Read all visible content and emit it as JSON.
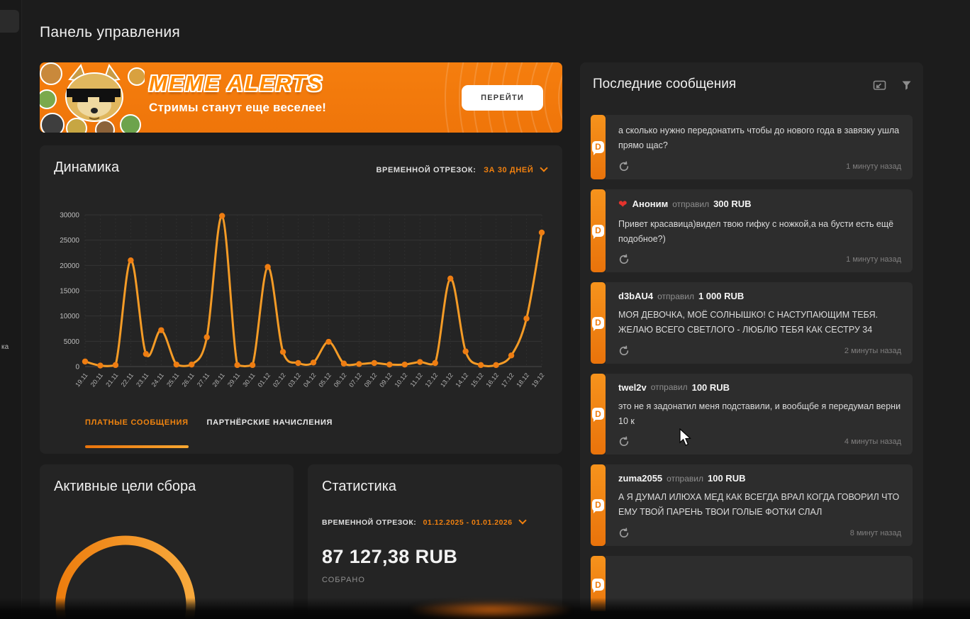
{
  "page": {
    "title": "Панель управления"
  },
  "sidebar": {
    "fragment": "ка"
  },
  "banner": {
    "title": "MEME ALERTS",
    "subtitle": "Стримы станут еще веселее!",
    "button": "ПЕРЕЙТИ",
    "collage_icon": "doge-with-sunglasses-sticker-collage",
    "background_color": "#F0770B"
  },
  "dynamics": {
    "title": "Динамика",
    "period_label": "ВРЕМЕННОЙ ОТРЕЗОК:",
    "period_value": "ЗА 30 ДНЕЙ",
    "tabs": [
      {
        "label": "ПЛАТНЫЕ СООБЩЕНИЯ",
        "active": true
      },
      {
        "label": "ПАРТНЁРСКИЕ НАЧИСЛЕНИЯ",
        "active": false
      }
    ]
  },
  "chart_data": {
    "type": "line",
    "title": "Динамика — платные сообщения за 30 дней (RUB)",
    "categories": [
      "19.11",
      "20.11",
      "21.11",
      "22.11",
      "23.11",
      "24.11",
      "25.11",
      "26.11",
      "27.11",
      "28.11",
      "29.11",
      "30.11",
      "01.12",
      "02.12",
      "03.12",
      "04.12",
      "05.12",
      "06.12",
      "07.12",
      "08.12",
      "09.12",
      "10.12",
      "11.12",
      "12.12",
      "13.12",
      "14.12",
      "15.12",
      "16.12",
      "17.12",
      "18.12",
      "19.12"
    ],
    "values": [
      1000,
      200,
      300,
      21000,
      2500,
      7200,
      400,
      400,
      5800,
      29800,
      300,
      300,
      19700,
      2900,
      700,
      800,
      4900,
      600,
      500,
      700,
      400,
      400,
      900,
      700,
      17400,
      3000,
      300,
      300,
      2200,
      9500,
      26500
    ],
    "xlabel": "",
    "ylabel": "",
    "ylim": [
      0,
      30000
    ],
    "yticks": [
      0,
      5000,
      10000,
      15000,
      20000,
      25000,
      30000
    ],
    "grid": true,
    "legend": "none",
    "line_color": "#F49B26",
    "point_color": "#EE7D12"
  },
  "goals": {
    "title": "Активные цели сбора",
    "progress_ring_color": "#F08A1A"
  },
  "stats": {
    "title": "Статистика",
    "period_label": "ВРЕМЕННОЙ ОТРЕЗОК:",
    "period_value": "01.12.2025 - 01.01.2026",
    "amount": "87 127,38 RUB",
    "amount_caption": "СОБРАНО"
  },
  "messages": {
    "title": "Последние сообщения",
    "logo_letter": "D",
    "icons": {
      "popup": "popup-window-icon",
      "filter": "funnel-icon",
      "refresh": "refresh-icon"
    },
    "items": [
      {
        "user": "",
        "verb": "",
        "amount": "",
        "heart": false,
        "text": "а сколько нужно передонатить чтобы до нового года в завязку ушла прямо щас?",
        "time": "1 минуту назад"
      },
      {
        "user": "Аноним",
        "verb": "отправил",
        "amount": "300 RUB",
        "heart": true,
        "text": "Привет красавица)видел твою гифку с ножкой,а на бусти есть ещё подобное?)",
        "time": "1 минуту назад"
      },
      {
        "user": "d3bAU4",
        "verb": "отправил",
        "amount": "1 000 RUB",
        "heart": false,
        "text": "МОЯ ДЕВОЧКА, МОЁ СОЛНЫШКО! С НАСТУПАЮЩИМ ТЕБЯ. ЖЕЛАЮ ВСЕГО СВЕТЛОГО - ЛЮБЛЮ ТЕБЯ КАК СЕСТРУ 34",
        "time": "2 минуты назад"
      },
      {
        "user": "twel2v",
        "verb": "отправил",
        "amount": "100 RUB",
        "heart": false,
        "text": "это не я задонатил меня подставили, и вообщбе я передумал верни 10 к",
        "time": "4 минуты назад"
      },
      {
        "user": "zuma2055",
        "verb": "отправил",
        "amount": "100 RUB",
        "heart": false,
        "text": "А Я ДУМАЛ ИЛЮХА МЕД КАК ВСЕГДА ВРАЛ КОГДА ГОВОРИЛ ЧТО ЕМУ ТВОЙ ПАРЕНЬ ТВОИ ГОЛЫЕ ФОТКИ СЛАЛ",
        "time": "8 минут назад"
      }
    ]
  },
  "colors": {
    "background": "#1C1C1C",
    "card": "#242424",
    "message_card": "#2D2D2D",
    "accent_orange": "#F07D0E",
    "heart_red": "#E5332D"
  }
}
